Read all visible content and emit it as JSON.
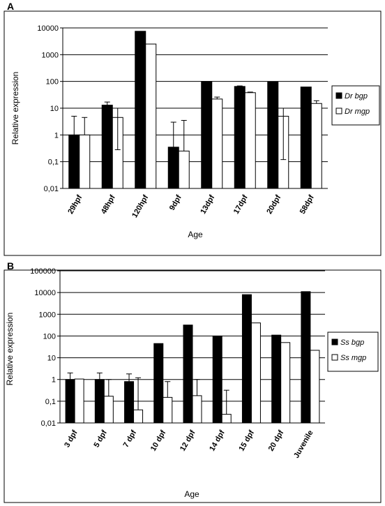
{
  "chart_data": [
    {
      "panel_label": "A",
      "type": "bar",
      "scale": "log",
      "ylabel": "Relative expression",
      "xlabel": "Age",
      "yticks": [
        "10000",
        "1000",
        "100",
        "10",
        "1",
        "0,1",
        "0,01"
      ],
      "ylim": [
        0.01,
        10000
      ],
      "categories": [
        "29hpf",
        "48hpf",
        "120hpf",
        "9dpf",
        "13dpf",
        "17dpf",
        "20dpf",
        "58dpf"
      ],
      "legend_position": "right",
      "grid": true,
      "series": [
        {
          "name": "Dr bgp",
          "color": "#000000",
          "values": [
            1,
            13,
            7500,
            0.35,
            100,
            65,
            95,
            62
          ],
          "err_hi": [
            5,
            17,
            null,
            3,
            null,
            68,
            null,
            null
          ],
          "err_lo": [
            null,
            null,
            null,
            null,
            null,
            null,
            null,
            null
          ]
        },
        {
          "name": "Dr mgp",
          "color": "#ffffff",
          "values": [
            1,
            4.5,
            2500,
            0.25,
            22,
            38,
            5,
            15
          ],
          "err_hi": [
            4.5,
            10,
            null,
            3.5,
            26,
            40,
            10,
            19
          ],
          "err_lo": [
            null,
            0.28,
            null,
            null,
            null,
            null,
            0.12,
            null
          ]
        }
      ]
    },
    {
      "panel_label": "B",
      "type": "bar",
      "scale": "log",
      "ylabel": "Relative expression",
      "xlabel": "Age",
      "yticks": [
        "100000",
        "10000",
        "1000",
        "100",
        "10",
        "1",
        "0,1",
        "0,01"
      ],
      "ylim": [
        0.01,
        100000
      ],
      "categories": [
        "3 dpf",
        "5 dpf",
        "7 dpf",
        "10 dpf",
        "12 dpf",
        "14 dpf",
        "15 dpf",
        "20 dpf",
        "Juvenile"
      ],
      "legend_position": "right",
      "grid": true,
      "series": [
        {
          "name": "Ss bgp",
          "color": "#000000",
          "values": [
            1,
            1,
            0.8,
            45,
            320,
            100,
            8000,
            110,
            11000
          ],
          "err_hi": [
            2,
            2,
            1.8,
            null,
            null,
            null,
            null,
            null,
            null
          ],
          "err_lo": [
            null,
            null,
            null,
            null,
            null,
            null,
            null,
            null,
            null
          ]
        },
        {
          "name": "Ss mgp",
          "color": "#ffffff",
          "values": [
            1.05,
            0.17,
            0.04,
            0.15,
            0.18,
            0.025,
            400,
            50,
            22
          ],
          "err_hi": [
            null,
            1,
            1.2,
            0.8,
            1,
            0.32,
            null,
            null,
            null
          ],
          "err_lo": [
            null,
            null,
            null,
            null,
            null,
            null,
            null,
            null,
            null
          ]
        }
      ]
    }
  ]
}
